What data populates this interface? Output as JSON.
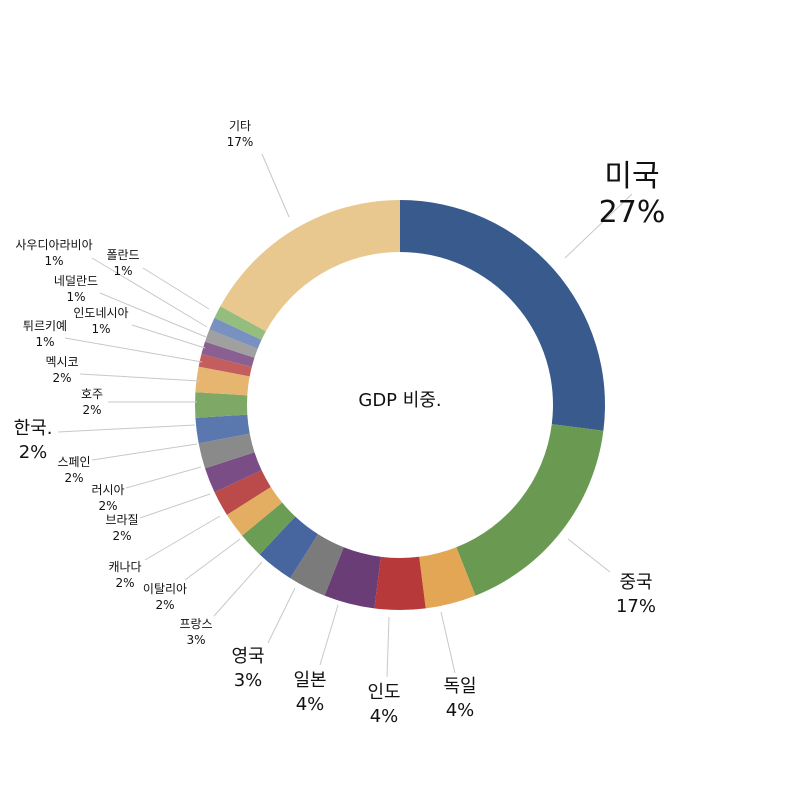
{
  "chart_data": {
    "type": "pie",
    "variant": "donut",
    "title": "GDP 비중.",
    "categories": [
      "미국",
      "중국",
      "독일",
      "인도",
      "일본",
      "영국",
      "프랑스",
      "이탈리아",
      "캐나다",
      "브라질",
      "러시아",
      "스페인",
      "한국.",
      "호주",
      "멕시코",
      "튀르키예",
      "인도네시아",
      "네덜란드",
      "사우디아라비아",
      "폴란드",
      "기타"
    ],
    "values": [
      27,
      17,
      4,
      4,
      4,
      3,
      3,
      2,
      2,
      2,
      2,
      2,
      2,
      2,
      2,
      1,
      1,
      1,
      1,
      1,
      17
    ],
    "value_labels": [
      "27%",
      "17%",
      "4%",
      "4%",
      "4%",
      "3%",
      "3%",
      "2%",
      "2%",
      "2%",
      "2%",
      "2%",
      "2%",
      "2%",
      "2%",
      "1%",
      "1%",
      "1%",
      "1%",
      "1%",
      "17%"
    ],
    "colors": [
      "#385a8c",
      "#6a9a51",
      "#e2a654",
      "#b8393a",
      "#6b3d77",
      "#7b7b7b",
      "#4766a0",
      "#6b9d55",
      "#e4ae62",
      "#bb4a4a",
      "#7a4d86",
      "#8a8a8a",
      "#5a78ad",
      "#7ea865",
      "#e6b670",
      "#c45d5d",
      "#8a6093",
      "#a0a0a0",
      "#7891c0",
      "#94bd7e",
      "#e8c88e"
    ]
  }
}
